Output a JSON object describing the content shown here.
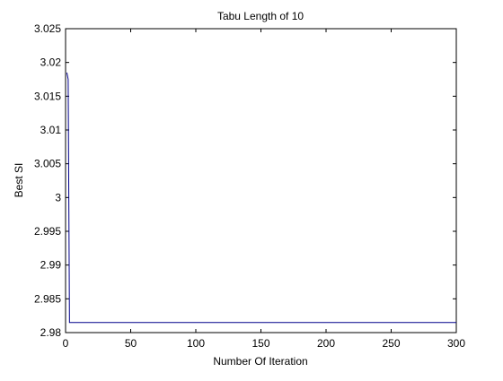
{
  "chart_data": {
    "type": "line",
    "title": "Tabu Length of 10",
    "xlabel": "Number Of Iteration",
    "ylabel": "Best SI",
    "xlim": [
      0,
      300
    ],
    "ylim": [
      2.98,
      3.025
    ],
    "xticks": [
      0,
      50,
      100,
      150,
      200,
      250,
      300
    ],
    "xtick_labels": [
      "0",
      "50",
      "100",
      "150",
      "200",
      "250",
      "300"
    ],
    "yticks": [
      2.98,
      2.985,
      2.99,
      2.995,
      3,
      3.005,
      3.01,
      3.015,
      3.02,
      3.025
    ],
    "ytick_labels": [
      "2.98",
      "2.985",
      "2.99",
      "2.995",
      "3",
      "3.005",
      "3.01",
      "3.015",
      "3.02",
      "3.025"
    ],
    "grid": false,
    "series": [
      {
        "color": "#00008b",
        "x": [
          1,
          2,
          3,
          4,
          5,
          300
        ],
        "y": [
          3.0185,
          3.0175,
          2.9815,
          2.9815,
          2.9815,
          2.9815
        ]
      }
    ]
  }
}
